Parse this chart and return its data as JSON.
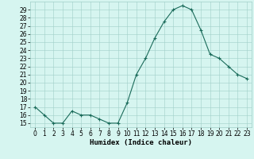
{
  "x": [
    0,
    1,
    2,
    3,
    4,
    5,
    6,
    7,
    8,
    9,
    10,
    11,
    12,
    13,
    14,
    15,
    16,
    17,
    18,
    19,
    20,
    21,
    22,
    23
  ],
  "y": [
    17,
    16,
    15,
    15,
    16.5,
    16,
    16,
    15.5,
    15,
    15,
    17.5,
    21,
    23,
    25.5,
    27.5,
    29,
    29.5,
    29,
    26.5,
    23.5,
    23,
    22,
    21,
    20.5
  ],
  "line_color": "#1a6b5a",
  "marker": "+",
  "marker_size": 3,
  "bg_color": "#d6f5f0",
  "grid_color": "#a0cfc8",
  "xlabel": "Humidex (Indice chaleur)",
  "ylim": [
    14.5,
    30
  ],
  "xlim": [
    -0.5,
    23.5
  ],
  "yticks": [
    15,
    16,
    17,
    18,
    19,
    20,
    21,
    22,
    23,
    24,
    25,
    26,
    27,
    28,
    29
  ],
  "xticks": [
    0,
    1,
    2,
    3,
    4,
    5,
    6,
    7,
    8,
    9,
    10,
    11,
    12,
    13,
    14,
    15,
    16,
    17,
    18,
    19,
    20,
    21,
    22,
    23
  ],
  "tick_label_fontsize": 5.5,
  "xlabel_fontsize": 6.5,
  "line_width": 0.8
}
